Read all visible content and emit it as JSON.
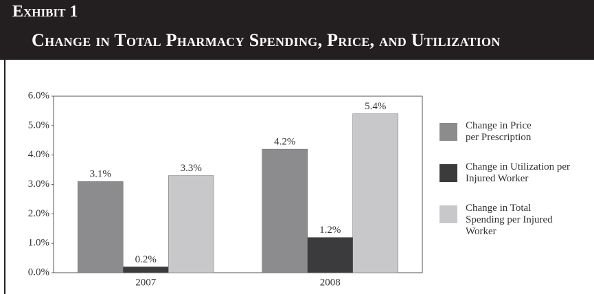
{
  "header": {
    "exhibit": "Exhibit 1"
  },
  "chart_data": {
    "type": "bar",
    "title": "Change in Total Pharmacy Spending, Price, and Utilization",
    "categories": [
      "2007",
      "2008"
    ],
    "series": [
      {
        "name": "Change in Price per Prescription",
        "color": "#8c8c8e",
        "values": [
          3.1,
          4.2
        ],
        "value_labels": [
          "3.1%",
          "4.2%"
        ]
      },
      {
        "name": "Change in Utilization per Injured Worker",
        "color": "#3b3b3d",
        "values": [
          0.2,
          1.2
        ],
        "value_labels": [
          "0.2%",
          "1.2%"
        ]
      },
      {
        "name": "Change in Total Spending per Injured Worker",
        "color": "#c8c8ca",
        "values": [
          3.3,
          5.4
        ],
        "value_labels": [
          "3.3%",
          "5.4%"
        ]
      }
    ],
    "ylim": [
      0,
      6
    ],
    "yticks": [
      {
        "value": 0,
        "label": "0.0%"
      },
      {
        "value": 1,
        "label": "1.0%"
      },
      {
        "value": 2,
        "label": "2.0%"
      },
      {
        "value": 3,
        "label": "3.0%"
      },
      {
        "value": 4,
        "label": "4.0%"
      },
      {
        "value": 5,
        "label": "5.0%"
      },
      {
        "value": 6,
        "label": "6.0%"
      }
    ],
    "grid": false,
    "legend": "right"
  }
}
